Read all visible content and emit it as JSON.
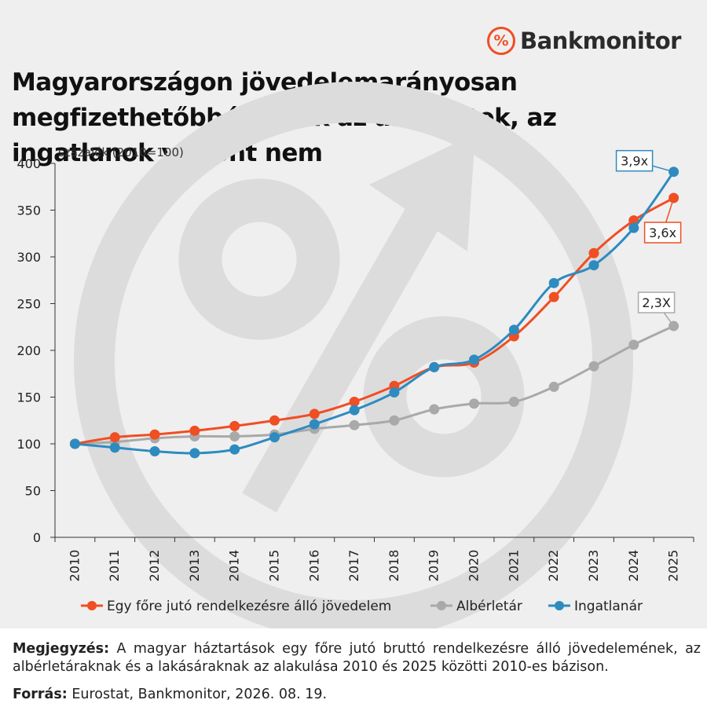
{
  "brand": {
    "name": "Bankmonitor",
    "badge": "%"
  },
  "title": "Magyarországon jövedelemarányosan megfizethetőbbé váltak az albérletek, az ingatlanok viszont nem",
  "chart_data": {
    "type": "line",
    "ylabel": "százalék (2010=100)",
    "ylim": [
      0,
      400
    ],
    "yticks": [
      0,
      50,
      100,
      150,
      200,
      250,
      300,
      350,
      400
    ],
    "grid": false,
    "legend_position": "bottom",
    "x": [
      "2010",
      "2011",
      "2012",
      "2013",
      "2014",
      "2015",
      "2016",
      "2017",
      "2018",
      "2019",
      "2020",
      "2021",
      "2022",
      "2023",
      "2024",
      "2025"
    ],
    "series": [
      {
        "name": "Egy főre jutó rendelkezésre álló jövedelem",
        "color": "#f04e23",
        "values": [
          100,
          107,
          110,
          114,
          119,
          125,
          132,
          145,
          162,
          182,
          187,
          215,
          257,
          304,
          339,
          363
        ]
      },
      {
        "name": "Albérletár",
        "color": "#a9a9a9",
        "values": [
          100,
          102,
          106,
          108,
          108,
          110,
          116,
          120,
          125,
          137,
          143,
          145,
          161,
          183,
          206,
          226
        ]
      },
      {
        "name": "Ingatlanár",
        "color": "#2e8bc0",
        "values": [
          100,
          96,
          92,
          90,
          94,
          107,
          121,
          136,
          155,
          182,
          190,
          222,
          272,
          291,
          331,
          391
        ]
      }
    ],
    "annotations": [
      {
        "text": "3,9x",
        "series": 2,
        "color": "#2e8bc0"
      },
      {
        "text": "3,6x",
        "series": 0,
        "color": "#f04e23"
      },
      {
        "text": "2,3X",
        "series": 1,
        "color": "#a9a9a9"
      }
    ]
  },
  "notes": {
    "note_label": "Megjegyzés:",
    "note_text": " A magyar háztartások egy főre jutó bruttó rendelkezésre álló jövedelemének, az albérletáraknak és a lakásáraknak az alakulása 2010 és 2025 közötti 2010-es bázison.",
    "source_label": "Forrás:",
    "source_text": " Eurostat, Bankmonitor, 2026. 08. 19."
  }
}
